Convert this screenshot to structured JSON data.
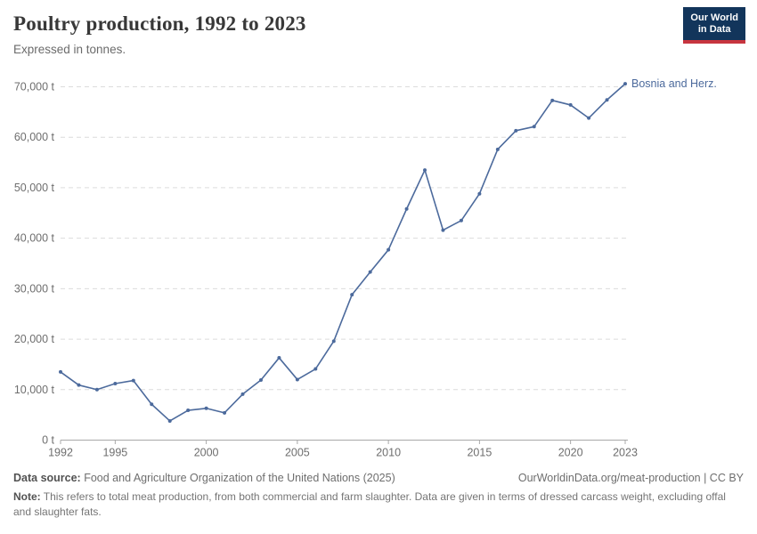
{
  "header": {
    "title": "Poultry production, 1992 to 2023",
    "subtitle": "Expressed in tonnes."
  },
  "logo": {
    "line1": "Our World",
    "line2": "in Data",
    "bg_color": "#12355b",
    "accent_color": "#c7353f"
  },
  "chart_data": {
    "type": "line",
    "title": "Poultry production, 1992 to 2023",
    "unit": "tonnes",
    "xlim": [
      1992,
      2023
    ],
    "ylim": [
      0,
      70000
    ],
    "grid": "horizontal dashed",
    "legend_position": "end-of-line label",
    "grid_color": "#dcdcdc",
    "axis_color": "#a8a8a8",
    "tick_label_color": "#6e6e6e",
    "x_ticks": {
      "values": [
        1992,
        1995,
        2000,
        2005,
        2010,
        2015,
        2020,
        2023
      ],
      "labels": [
        "1992",
        "1995",
        "2000",
        "2005",
        "2010",
        "2015",
        "2020",
        "2023"
      ]
    },
    "y_ticks": {
      "values": [
        0,
        10000,
        20000,
        30000,
        40000,
        50000,
        60000,
        70000
      ],
      "labels": [
        "0 t",
        "10,000 t",
        "20,000 t",
        "30,000 t",
        "40,000 t",
        "50,000 t",
        "60,000 t",
        "70,000 t"
      ]
    },
    "series": [
      {
        "name": "Bosnia and Herz.",
        "color": "#4C6A9C",
        "x": [
          1992,
          1993,
          1994,
          1995,
          1996,
          1997,
          1998,
          1999,
          2000,
          2001,
          2002,
          2003,
          2004,
          2005,
          2006,
          2007,
          2008,
          2009,
          2010,
          2011,
          2012,
          2013,
          2014,
          2015,
          2016,
          2017,
          2018,
          2019,
          2020,
          2021,
          2022,
          2023
        ],
        "values": [
          13500,
          10900,
          10000,
          11200,
          11800,
          7100,
          3800,
          5900,
          6300,
          5400,
          9100,
          11900,
          16300,
          12000,
          14100,
          19600,
          28800,
          33300,
          37700,
          45800,
          53500,
          41600,
          43500,
          48800,
          57600,
          61300,
          62100,
          67300,
          66400,
          63800,
          67400,
          70600
        ]
      }
    ]
  },
  "footer": {
    "source_label": "Data source:",
    "source_text": "Food and Agriculture Organization of the United Nations (2025)",
    "link_text": "OurWorldinData.org/meat-production | CC BY",
    "note_label": "Note:",
    "note_text": "This refers to total meat production, from both commercial and farm slaughter. Data are given in terms of dressed carcass weight, excluding offal and slaughter fats."
  }
}
